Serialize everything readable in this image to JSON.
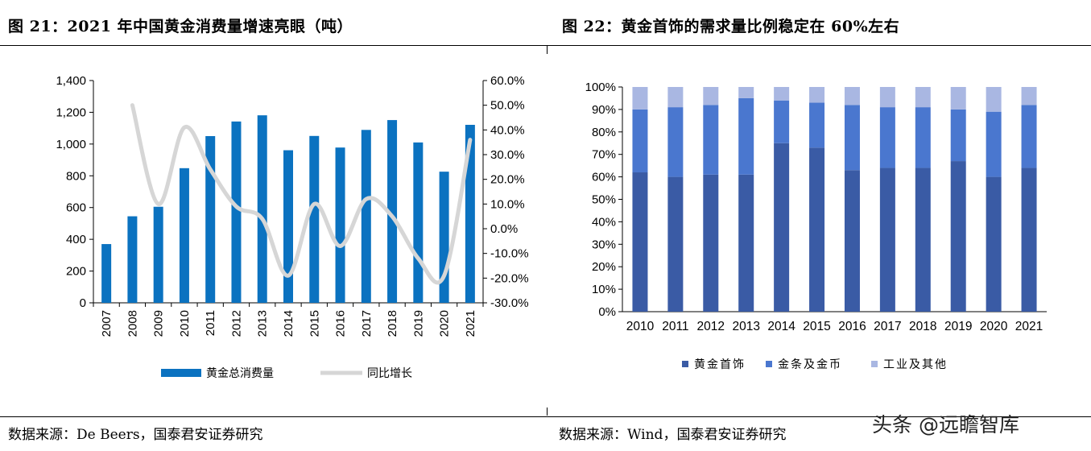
{
  "left_figure": {
    "title": "图 21：2021 年中国黄金消费量增速亮眼（吨）",
    "source": "数据来源：De Beers，国泰君安证券研究"
  },
  "right_figure": {
    "title": "图 22：黄金首饰的需求量比例稳定在 60%左右",
    "source": "数据来源：Wind，国泰君安证券研究"
  },
  "watermark": "头条 @远瞻智库",
  "colors": {
    "bar_blue": "#0b72c0",
    "line_gray": "#d6d6d6",
    "jewelry": "#3a5ba5",
    "bars_coins": "#4a77cf",
    "industrial": "#a9b7e2"
  },
  "chart_data": [
    {
      "type": "bar",
      "categories": [
        "2007",
        "2008",
        "2009",
        "2010",
        "2011",
        "2012",
        "2013",
        "2014",
        "2015",
        "2016",
        "2017",
        "2018",
        "2019",
        "2020",
        "2021"
      ],
      "series": [
        {
          "name": "黄金总消费量",
          "type": "bar",
          "axis": "left",
          "values": [
            370,
            545,
            605,
            848,
            1050,
            1142,
            1181,
            961,
            1051,
            978,
            1089,
            1151,
            1010,
            826,
            1121
          ]
        },
        {
          "name": "同比增长",
          "type": "line",
          "axis": "right",
          "values": [
            null,
            50.0,
            10.0,
            41.0,
            24.0,
            9.0,
            4.0,
            -19.0,
            10.0,
            -7.0,
            12.0,
            5.0,
            -12.0,
            -19.0,
            36.0
          ]
        }
      ],
      "y_left": {
        "min": 0,
        "max": 1400,
        "step": 200,
        "tick_labels": [
          "0",
          "200",
          "400",
          "600",
          "800",
          "1,000",
          "1,200",
          "1,400"
        ]
      },
      "y_right": {
        "min": -30,
        "max": 60,
        "step": 10,
        "tick_labels": [
          "-30.0%",
          "-20.0%",
          "-10.0%",
          "0.0%",
          "10.0%",
          "20.0%",
          "30.0%",
          "40.0%",
          "50.0%",
          "60.0%"
        ]
      },
      "legend": {
        "position": "bottom",
        "items": [
          "黄金总消费量",
          "同比增长"
        ]
      }
    },
    {
      "type": "bar",
      "stacked": true,
      "categories": [
        "2010",
        "2011",
        "2012",
        "2013",
        "2014",
        "2015",
        "2016",
        "2017",
        "2018",
        "2019",
        "2020",
        "2021"
      ],
      "series": [
        {
          "name": "黄金首饰",
          "values": [
            62,
            60,
            61,
            61,
            75,
            73,
            63,
            64,
            64,
            67,
            60,
            64
          ]
        },
        {
          "name": "金条及金币",
          "values": [
            28,
            31,
            31,
            34,
            19,
            20,
            29,
            27,
            27,
            23,
            29,
            28
          ]
        },
        {
          "name": "工业及其他",
          "values": [
            10,
            9,
            8,
            5,
            6,
            7,
            8,
            9,
            9,
            10,
            11,
            8
          ]
        }
      ],
      "y": {
        "min": 0,
        "max": 100,
        "step": 10,
        "tick_labels": [
          "0%",
          "10%",
          "20%",
          "30%",
          "40%",
          "50%",
          "60%",
          "70%",
          "80%",
          "90%",
          "100%"
        ]
      },
      "legend": {
        "position": "bottom",
        "items": [
          "黄金首饰",
          "金条及金币",
          "工业及其他"
        ]
      }
    }
  ]
}
